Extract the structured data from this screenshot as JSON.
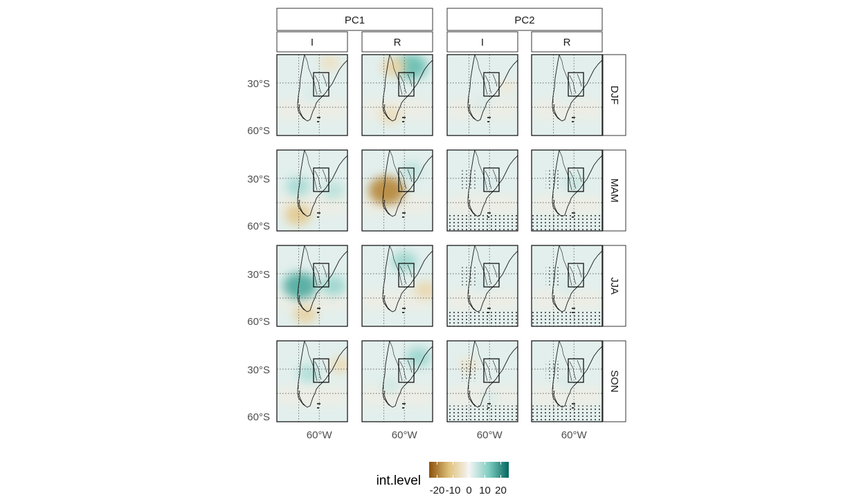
{
  "chart_data": {
    "type": "heatmap",
    "facets": {
      "columns": [
        {
          "pc": "PC1",
          "type": "I"
        },
        {
          "pc": "PC1",
          "type": "R"
        },
        {
          "pc": "PC2",
          "type": "I"
        },
        {
          "pc": "PC2",
          "type": "R"
        }
      ],
      "column_groups": [
        "PC1",
        "PC2"
      ],
      "rows": [
        "DJF",
        "MAM",
        "JJA",
        "SON"
      ]
    },
    "y_ticks": [
      "30°S",
      "60°S"
    ],
    "x_ticks": [
      "60°W"
    ],
    "legend": {
      "title": "int.level",
      "ticks": [
        "-20",
        "-10",
        "0",
        "10",
        "20"
      ],
      "range": [
        -25,
        25
      ],
      "colors": [
        "#8c510a",
        "#dfc27d",
        "#f5f5f5",
        "#80cdc1",
        "#01665e"
      ]
    },
    "panels": [
      {
        "row": "DJF",
        "col": 0,
        "anomalies": [
          {
            "x": 0.75,
            "y": 0.1,
            "v": -5
          },
          {
            "x": 0.5,
            "y": 0.5,
            "v": 3
          }
        ],
        "stipple": false
      },
      {
        "row": "DJF",
        "col": 1,
        "anomalies": [
          {
            "x": 0.7,
            "y": 0.15,
            "v": 14
          },
          {
            "x": 0.45,
            "y": 0.15,
            "v": -8
          },
          {
            "x": 0.4,
            "y": 0.75,
            "v": -6
          }
        ],
        "stipple": false
      },
      {
        "row": "DJF",
        "col": 2,
        "anomalies": [
          {
            "x": 0.5,
            "y": 0.6,
            "v": 3
          },
          {
            "x": 0.85,
            "y": 0.4,
            "v": -3
          }
        ],
        "stipple": false
      },
      {
        "row": "DJF",
        "col": 3,
        "anomalies": [
          {
            "x": 0.5,
            "y": 0.5,
            "v": 2
          }
        ],
        "stipple": false
      },
      {
        "row": "MAM",
        "col": 0,
        "anomalies": [
          {
            "x": 0.3,
            "y": 0.45,
            "v": 8
          },
          {
            "x": 0.3,
            "y": 0.8,
            "v": -10
          },
          {
            "x": 0.8,
            "y": 0.5,
            "v": 6
          }
        ],
        "stipple": false
      },
      {
        "row": "MAM",
        "col": 1,
        "anomalies": [
          {
            "x": 0.35,
            "y": 0.5,
            "v": -18
          },
          {
            "x": 0.7,
            "y": 0.25,
            "v": 6
          }
        ],
        "stipple": false
      },
      {
        "row": "MAM",
        "col": 2,
        "anomalies": [
          {
            "x": 0.6,
            "y": 0.4,
            "v": 3
          }
        ],
        "stipple": true
      },
      {
        "row": "MAM",
        "col": 3,
        "anomalies": [
          {
            "x": 0.6,
            "y": 0.4,
            "v": 5
          }
        ],
        "stipple": true
      },
      {
        "row": "JJA",
        "col": 0,
        "anomalies": [
          {
            "x": 0.33,
            "y": 0.5,
            "v": 16
          },
          {
            "x": 0.8,
            "y": 0.5,
            "v": 9
          },
          {
            "x": 0.4,
            "y": 0.85,
            "v": -8
          }
        ],
        "stipple": false
      },
      {
        "row": "JJA",
        "col": 1,
        "anomalies": [
          {
            "x": 0.6,
            "y": 0.2,
            "v": 9
          },
          {
            "x": 0.9,
            "y": 0.55,
            "v": -7
          }
        ],
        "stipple": false
      },
      {
        "row": "JJA",
        "col": 2,
        "anomalies": [
          {
            "x": 0.5,
            "y": 0.5,
            "v": 3
          }
        ],
        "stipple": true
      },
      {
        "row": "JJA",
        "col": 3,
        "anomalies": [
          {
            "x": 0.5,
            "y": 0.5,
            "v": 3
          }
        ],
        "stipple": true
      },
      {
        "row": "SON",
        "col": 0,
        "anomalies": [
          {
            "x": 0.45,
            "y": 0.4,
            "v": 7
          },
          {
            "x": 0.9,
            "y": 0.3,
            "v": -6
          }
        ],
        "stipple": false
      },
      {
        "row": "SON",
        "col": 1,
        "anomalies": [
          {
            "x": 0.8,
            "y": 0.2,
            "v": 9
          },
          {
            "x": 0.4,
            "y": 0.55,
            "v": 4
          }
        ],
        "stipple": false
      },
      {
        "row": "SON",
        "col": 2,
        "anomalies": [
          {
            "x": 0.3,
            "y": 0.3,
            "v": -4
          },
          {
            "x": 0.6,
            "y": 0.7,
            "v": 3
          }
        ],
        "stipple": true
      },
      {
        "row": "SON",
        "col": 3,
        "anomalies": [
          {
            "x": 0.5,
            "y": 0.5,
            "v": 3
          }
        ],
        "stipple": true
      }
    ]
  }
}
